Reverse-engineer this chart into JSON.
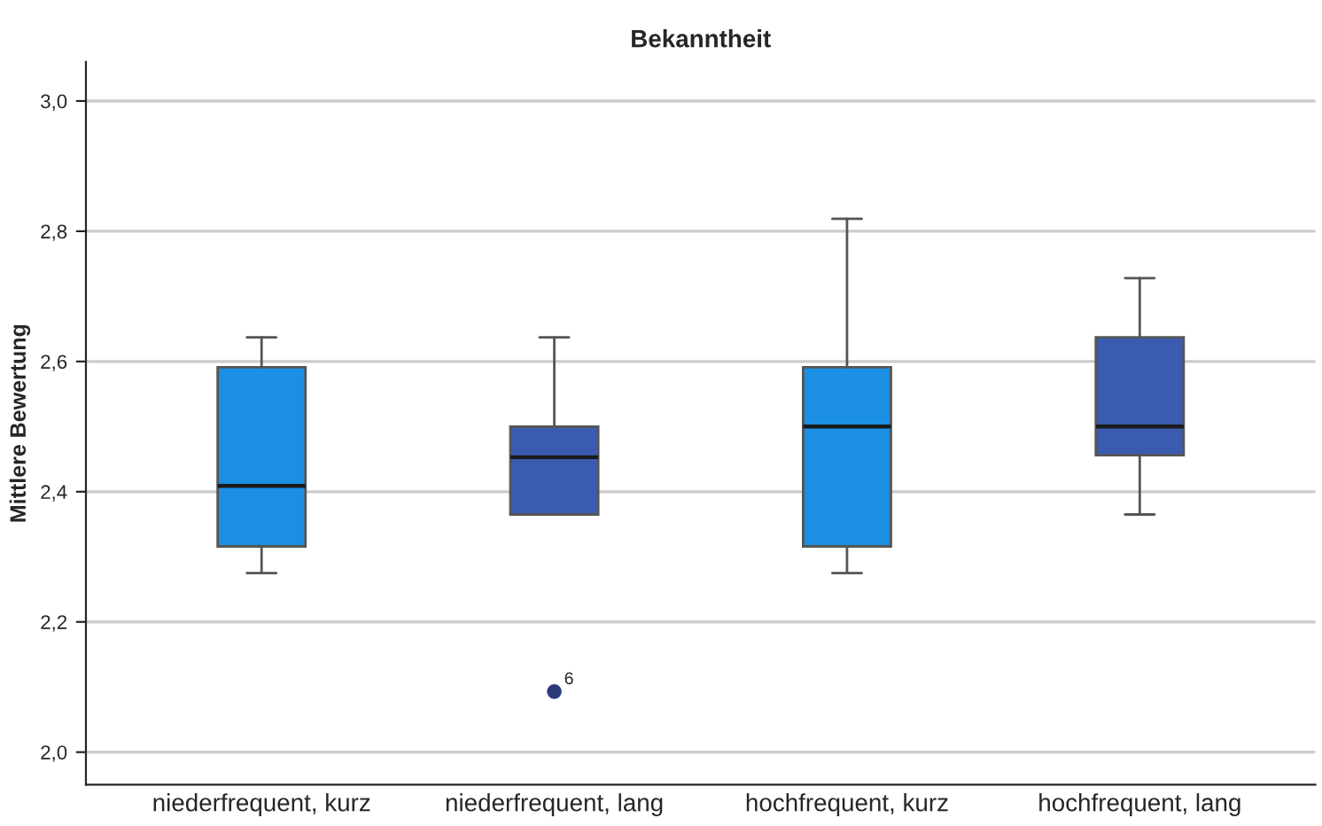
{
  "chart_data": {
    "type": "box",
    "title": "Bekanntheit",
    "ylabel": "Mittlere Bewertung",
    "categories": [
      "niederfrequent, kurz",
      "niederfrequent, lang",
      "hochfrequent, kurz",
      "hochfrequent, lang"
    ],
    "colors": [
      "#1a8fe3",
      "#3a5bb0",
      "#1a8fe3",
      "#3a5bb0"
    ],
    "boxes": [
      {
        "low": 2.275,
        "q1": 2.316,
        "median": 2.409,
        "q3": 2.591,
        "high": 2.637
      },
      {
        "low": 2.365,
        "q1": 2.365,
        "median": 2.453,
        "q3": 2.5,
        "high": 2.637,
        "outliers": [
          2.093
        ]
      },
      {
        "low": 2.275,
        "q1": 2.316,
        "median": 2.5,
        "q3": 2.591,
        "high": 2.819
      },
      {
        "low": 2.365,
        "q1": 2.456,
        "median": 2.5,
        "q3": 2.637,
        "high": 2.728
      }
    ],
    "ylim": [
      1.95,
      3.06
    ],
    "yticks": [
      {
        "value": 2.0,
        "label": "2,0"
      },
      {
        "value": 2.2,
        "label": "2,2"
      },
      {
        "value": 2.4,
        "label": "2,4"
      },
      {
        "value": 2.6,
        "label": "2,6"
      },
      {
        "value": 2.8,
        "label": "2,8"
      },
      {
        "value": 3.0,
        "label": "3,0"
      }
    ],
    "grid": "y",
    "annotations": [
      "6"
    ]
  }
}
